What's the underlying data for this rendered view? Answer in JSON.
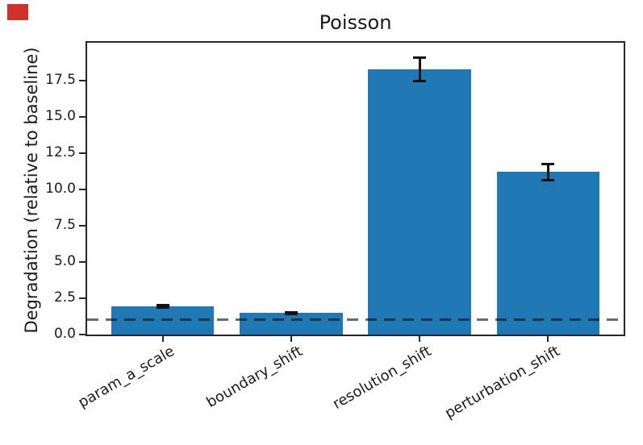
{
  "figure": {
    "title": "Poisson",
    "ylabel": "Degradation (relative to baseline)",
    "background": "#ffffff"
  },
  "chart_data": {
    "type": "bar",
    "title": "Poisson",
    "xlabel": "",
    "ylabel": "Degradation (relative to baseline)",
    "categories": [
      "param_a_scale",
      "boundary_shift",
      "resolution_shift",
      "perturbation_shift"
    ],
    "values": [
      1.95,
      1.48,
      18.25,
      11.2
    ],
    "error_bars": [
      0.1,
      0.07,
      0.8,
      0.55
    ],
    "baseline": {
      "value": 1.0,
      "style": "dashed",
      "color_rgba": "rgba(15,15,15,0.62)"
    },
    "yticks": [
      0.0,
      2.5,
      5.0,
      7.5,
      10.0,
      12.5,
      15.0,
      17.5
    ],
    "ylim": [
      0,
      20.1
    ],
    "xlim": [
      -0.59,
      3.59
    ],
    "bar_width_fraction": 0.8,
    "bar_color": "#1f77b4",
    "errorbar_color": "#111111",
    "xtick_rotation_deg": 30,
    "grid": false,
    "legend": null
  },
  "annotations": {
    "red_marker": {
      "color": "#d0312d"
    }
  }
}
